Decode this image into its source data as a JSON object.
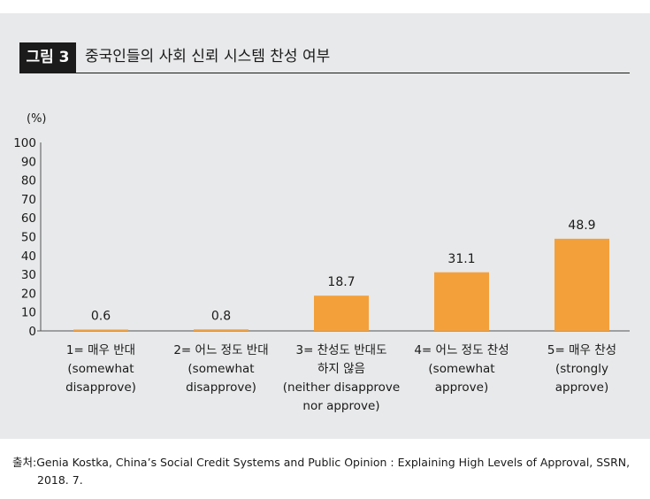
{
  "figure": {
    "label": "그림 3",
    "title": "중국인들의 사회 신뢰 시스템 찬성 여부"
  },
  "colors": {
    "bar": "#f4a03a",
    "panel": "#e8e9ea",
    "axis": "#555555",
    "label_bg": "#1b1b1b"
  },
  "chart_data": {
    "type": "bar",
    "title": "중국인들의 사회 신뢰 시스템 찬성 여부",
    "ylabel": "(%)",
    "xlabel": "",
    "ylim": [
      0,
      100
    ],
    "yticks": [
      0,
      10,
      20,
      30,
      40,
      50,
      60,
      70,
      80,
      90,
      100
    ],
    "grid": false,
    "categories": [
      [
        "1= 매우 반대",
        "(somewhat",
        "disapprove)"
      ],
      [
        "2= 어느 정도 반대",
        "(somewhat",
        "disapprove)"
      ],
      [
        "3= 찬성도 반대도",
        "하지 않음",
        "(neither disapprove",
        "nor approve)"
      ],
      [
        "4= 어느 정도 찬성",
        "(somewhat",
        "approve)"
      ],
      [
        "5= 매우 찬성",
        "(strongly",
        "approve)"
      ]
    ],
    "values": [
      0.6,
      0.8,
      18.7,
      31.1,
      48.9
    ],
    "value_labels": [
      "0.6",
      "0.8",
      "18.7",
      "31.1",
      "48.9"
    ]
  },
  "source": {
    "prefix": "출처:",
    "text": "Genia Kostka, China’s Social Credit Systems and Public Opinion : Explaining High Levels of Approval, SSRN,",
    "text_line2": "2018. 7."
  }
}
